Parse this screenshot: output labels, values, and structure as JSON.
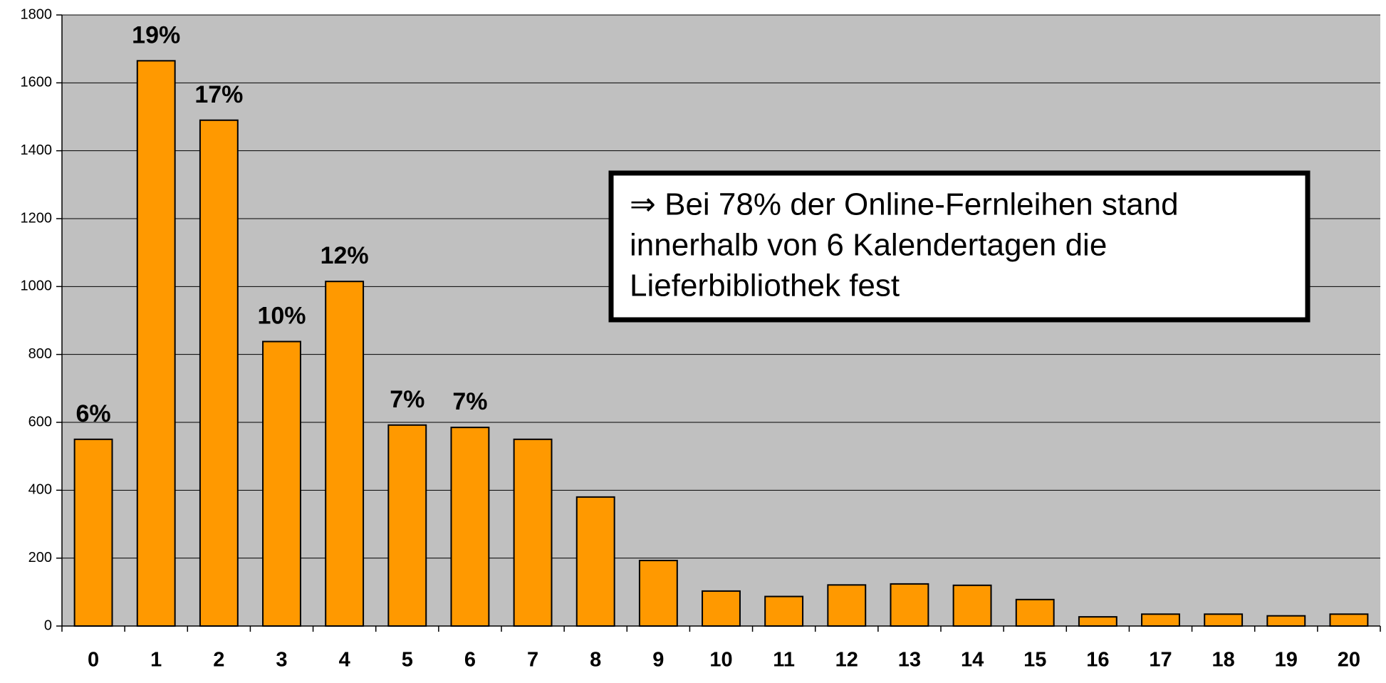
{
  "chart_data": {
    "type": "bar",
    "categories": [
      "0",
      "1",
      "2",
      "3",
      "4",
      "5",
      "6",
      "7",
      "8",
      "9",
      "10",
      "11",
      "12",
      "13",
      "14",
      "15",
      "16",
      "17",
      "18",
      "19",
      "20"
    ],
    "values": [
      550,
      1665,
      1490,
      838,
      1015,
      592,
      585,
      550,
      380,
      193,
      103,
      87,
      121,
      124,
      120,
      78,
      27,
      35,
      35,
      30,
      35
    ],
    "bar_labels": [
      "6%",
      "19%",
      "17%",
      "10%",
      "12%",
      "7%",
      "7%",
      null,
      null,
      null,
      null,
      null,
      null,
      null,
      null,
      null,
      null,
      null,
      null,
      null,
      null
    ],
    "color": "#ff9900",
    "ylim": [
      0,
      1800
    ],
    "yticks": [
      0,
      200,
      400,
      600,
      800,
      1000,
      1200,
      1400,
      1600,
      1800
    ],
    "grid": true,
    "annotation": [
      "⇒ Bei 78% der Online-Fernleihen stand",
      "innerhalb von 6 Kalendertagen die",
      "Lieferbibliothek fest"
    ]
  }
}
